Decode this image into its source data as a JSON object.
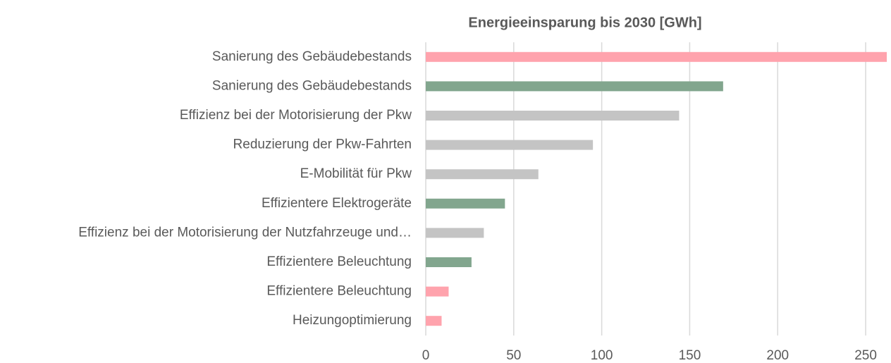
{
  "chart_data": {
    "type": "barh",
    "title": "Energieeinsparung bis 2030 [GWh]",
    "categories": [
      "Sanierung des Gebäudebestands",
      "Sanierung des Gebäudebestands",
      "Effizienz bei der Motorisierung der Pkw",
      "Reduzierung der Pkw-Fahrten",
      "E-Mobilität für Pkw",
      "Effizientere Elektrogeräte",
      "Effizienz bei der Motorisierung der Nutzfahrzeuge und…",
      "Effizientere Beleuchtung",
      "Effizientere Beleuchtung",
      "Heizungoptimierung"
    ],
    "values": [
      262,
      169,
      144,
      95,
      64,
      45,
      33,
      26,
      13,
      9
    ],
    "colors": [
      "#ffa3ad",
      "#82a68e",
      "#c4c4c4",
      "#c4c4c4",
      "#c4c4c4",
      "#82a68e",
      "#c4c4c4",
      "#82a68e",
      "#ffa3ad",
      "#ffa3ad"
    ],
    "xlim": [
      0,
      262
    ],
    "xticks": [
      0,
      50,
      100,
      150,
      200,
      250
    ],
    "grid": true
  }
}
